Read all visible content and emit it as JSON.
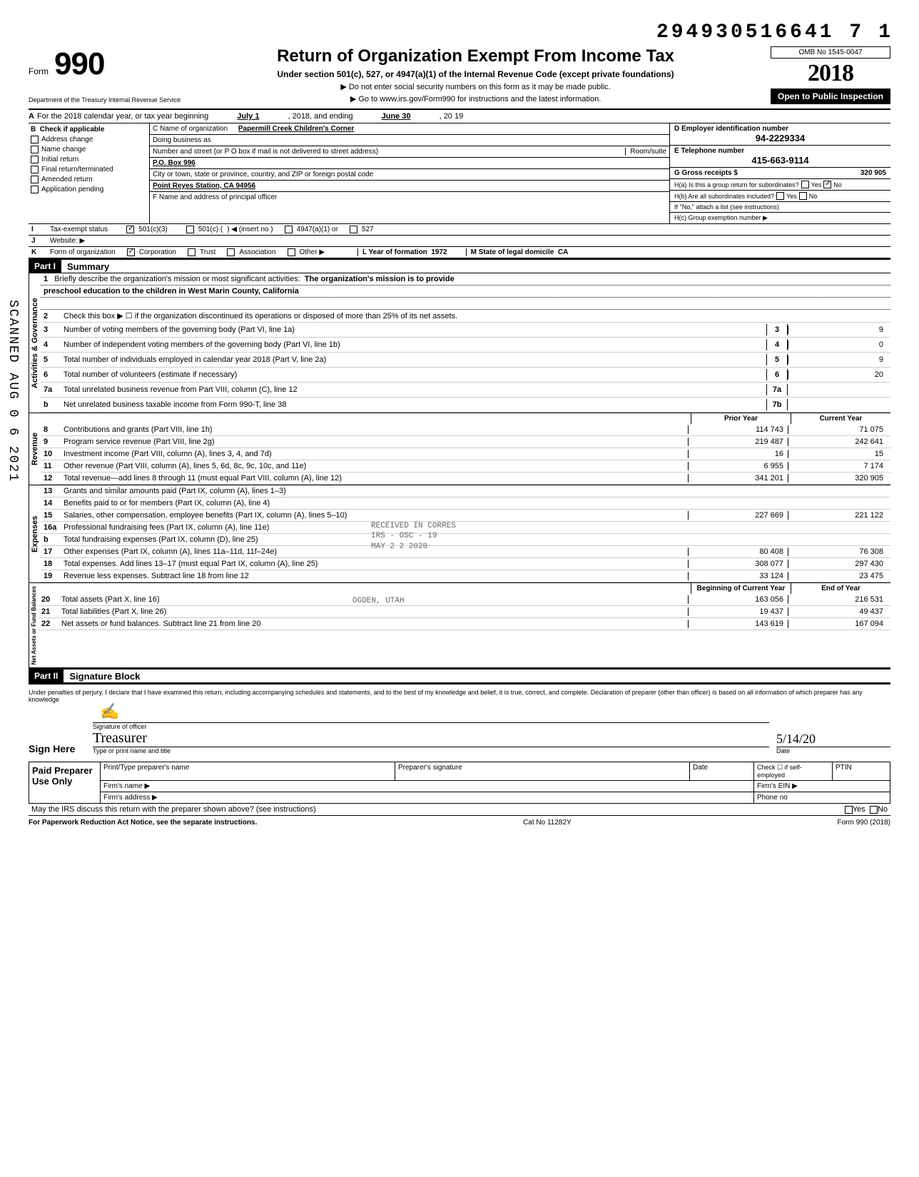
{
  "doc_id": "294930516641 7",
  "doc_id_suffix": "1",
  "form": {
    "word": "Form",
    "number": "990"
  },
  "title": "Return of Organization Exempt From Income Tax",
  "subtitle": "Under section 501(c), 527, or 4947(a)(1) of the Internal Revenue Code (except private foundations)",
  "note1": "▶ Do not enter social security numbers on this form as it may be made public.",
  "note2": "▶ Go to www.irs.gov/Form990 for instructions and the latest information.",
  "omb": "OMB No 1545-0047",
  "year": "2018",
  "open_public": "Open to Public Inspection",
  "dept": "Department of the Treasury Internal Revenue Service",
  "scanned": "SCANNED AUG 0 6 2021",
  "lineA": {
    "label": "A",
    "text": "For the 2018 calendar year, or tax year beginning",
    "begin": "July 1",
    "mid": ", 2018, and ending",
    "end_month": "June 30",
    "end_year": ", 20  19"
  },
  "colB": {
    "hdr_l": "B",
    "hdr_r": "Check if applicable",
    "items": [
      "Address change",
      "Name change",
      "Initial return",
      "Final return/terminated",
      "Amended return",
      "Application pending"
    ]
  },
  "colC": {
    "c_label": "C Name of organization",
    "c_val": "Papermill Creek Children's Corner",
    "dba": "Doing business as",
    "addr_label": "Number and street (or P O  box if mail is not delivered to street address)",
    "room": "Room/suite",
    "addr_val": "P.O. Box 996",
    "city_label": "City or town, state or province, country, and ZIP or foreign postal code",
    "city_val": "Point Reyes Station, CA 94956",
    "f_label": "F Name and address of principal officer"
  },
  "colD": {
    "label": "D Employer identification number",
    "val": "94-2229334"
  },
  "colE": {
    "label": "E Telephone number",
    "val": "415-663-9114"
  },
  "colG": {
    "label": "G Gross receipts $",
    "val": "320 905"
  },
  "colH": {
    "a": "H(a) Is this a group return for subordinates?",
    "a_yes": "Yes",
    "a_no": "No",
    "b": "H(b) Are all subordinates included?",
    "b_yes": "Yes",
    "b_no": "No",
    "b_note": "If \"No,\" attach a list (see instructions)",
    "c": "H(c) Group exemption number ▶"
  },
  "rowI": {
    "lbl": "I",
    "text": "Tax-exempt status",
    "c3": "501(c)(3)",
    "c": "501(c) (",
    "insert": ") ◀ (insert no )",
    "a1": "4947(a)(1) or",
    "x527": "527"
  },
  "rowJ": {
    "lbl": "J",
    "text": "Website: ▶"
  },
  "rowK": {
    "lbl": "K",
    "text": "Form of organization",
    "corp": "Corporation",
    "trust": "Trust",
    "assoc": "Association",
    "other": "Other ▶",
    "l": "L Year of formation",
    "lval": "1972",
    "m": "M State of legal domicile",
    "mval": "CA"
  },
  "part1": {
    "hdr": "Part I",
    "title": "Summary"
  },
  "mission": {
    "n": "1",
    "text": "Briefly describe the organization's mission or most significant activities:",
    "val": "The organization's mission is to provide",
    "val2": "preschool education to the children in West Marin County, California"
  },
  "gov_lines": [
    {
      "n": "2",
      "t": "Check this box ▶ ☐ if the organization discontinued its operations or disposed of more than 25% of its net assets."
    },
    {
      "n": "3",
      "t": "Number of voting members of the governing body (Part VI, line 1a)",
      "box": "3",
      "v": "9"
    },
    {
      "n": "4",
      "t": "Number of independent voting members of the governing body (Part VI, line 1b)",
      "box": "4",
      "v": "0"
    },
    {
      "n": "5",
      "t": "Total number of individuals employed in calendar year 2018 (Part V, line 2a)",
      "box": "5",
      "v": "9"
    },
    {
      "n": "6",
      "t": "Total number of volunteers (estimate if necessary)",
      "box": "6",
      "v": "20"
    },
    {
      "n": "7a",
      "t": "Total unrelated business revenue from Part VIII, column (C), line 12",
      "box": "7a",
      "v": ""
    },
    {
      "n": "b",
      "t": "Net unrelated business taxable income from Form 990-T, line 38",
      "box": "7b",
      "v": ""
    }
  ],
  "yr_hdr": {
    "prior": "Prior Year",
    "cur": "Current Year"
  },
  "rev_lines": [
    {
      "n": "8",
      "t": "Contributions and grants (Part VIII, line 1h)",
      "p": "114 743",
      "c": "71 075"
    },
    {
      "n": "9",
      "t": "Program service revenue (Part VIII, line 2g)",
      "p": "219 487",
      "c": "242 641"
    },
    {
      "n": "10",
      "t": "Investment income (Part VIII, column (A), lines 3, 4, and 7d)",
      "p": "16",
      "c": "15"
    },
    {
      "n": "11",
      "t": "Other revenue (Part VIII, column (A), lines 5, 6d, 8c, 9c, 10c, and 11e)",
      "p": "6 955",
      "c": "7 174"
    },
    {
      "n": "12",
      "t": "Total revenue—add lines 8 through 11 (must equal Part VIII, column (A), line 12)",
      "p": "341 201",
      "c": "320 905"
    }
  ],
  "exp_lines": [
    {
      "n": "13",
      "t": "Grants and similar amounts paid (Part IX, column (A), lines 1–3)",
      "p": "",
      "c": ""
    },
    {
      "n": "14",
      "t": "Benefits paid to or for members (Part IX, column (A), line 4)",
      "p": "",
      "c": ""
    },
    {
      "n": "15",
      "t": "Salaries, other compensation, employee benefits (Part IX, column (A), lines 5–10)",
      "p": "227 669",
      "c": "221 122"
    },
    {
      "n": "16a",
      "t": "Professional fundraising fees (Part IX, column (A),  line 11e)",
      "p": "",
      "c": ""
    },
    {
      "n": "b",
      "t": "Total fundraising expenses (Part IX, column (D), line 25)",
      "p": "",
      "c": ""
    },
    {
      "n": "17",
      "t": "Other expenses (Part IX, column (A), lines 11a–11d, 11f–24e)",
      "p": "80 408",
      "c": "76 308"
    },
    {
      "n": "18",
      "t": "Total expenses. Add lines 13–17 (must equal Part IX, column (A), line 25)",
      "p": "308 077",
      "c": "297 430"
    },
    {
      "n": "19",
      "t": "Revenue less expenses. Subtract line 18 from line 12",
      "p": "33 124",
      "c": "23 475"
    }
  ],
  "na_hdr": {
    "prior": "Beginning of Current Year",
    "cur": "End of Year"
  },
  "na_lines": [
    {
      "n": "20",
      "t": "Total assets (Part X, line 16)",
      "p": "163 056",
      "c": "216 531"
    },
    {
      "n": "21",
      "t": "Total liabilities (Part X, line 26)",
      "p": "19 437",
      "c": "49 437"
    },
    {
      "n": "22",
      "t": "Net assets or fund balances. Subtract line 21 from line 20",
      "p": "143 619",
      "c": "167 094"
    }
  ],
  "stamp": {
    "l1": "RECEIVED IN CORRES",
    "l2": "IRS - OSC - 19",
    "l3": "MAY 2 2 2020",
    "l4": "OGDEN, UTAH"
  },
  "part2": {
    "hdr": "Part II",
    "title": "Signature Block"
  },
  "sig_decl": "Under penalties of perjury, I declare that I have examined this return, including accompanying schedules and statements, and to the best of my knowledge and belief, it is true, correct, and complete. Declaration of preparer (other than officer) is based on all information of which preparer has any knowledge",
  "sign": {
    "here": "Sign Here",
    "sig": "Signature of officer",
    "date": "Date",
    "date_val": "5/14/20",
    "title_lbl": "Type or print name and title",
    "title_val": "Treasurer"
  },
  "prep": {
    "lbl": "Paid Preparer Use Only",
    "name": "Print/Type preparer's name",
    "sig": "Preparer's signature",
    "date": "Date",
    "check": "Check ☐ if self-employed",
    "ptin": "PTIN",
    "firm": "Firm's name  ▶",
    "ein": "Firm's EIN ▶",
    "addr": "Firm's address ▶",
    "phone": "Phone no"
  },
  "discuss": "May the IRS discuss this return with the preparer shown above? (see instructions)",
  "discuss_yes": "Yes",
  "discuss_no": "No",
  "footer": {
    "l": "For Paperwork Reduction Act Notice, see the separate instructions.",
    "m": "Cat No 11282Y",
    "r": "Form 990 (2018)"
  },
  "vert": {
    "gov": "Activities & Governance",
    "rev": "Revenue",
    "exp": "Expenses",
    "na": "Net Assets or Fund Balances"
  }
}
